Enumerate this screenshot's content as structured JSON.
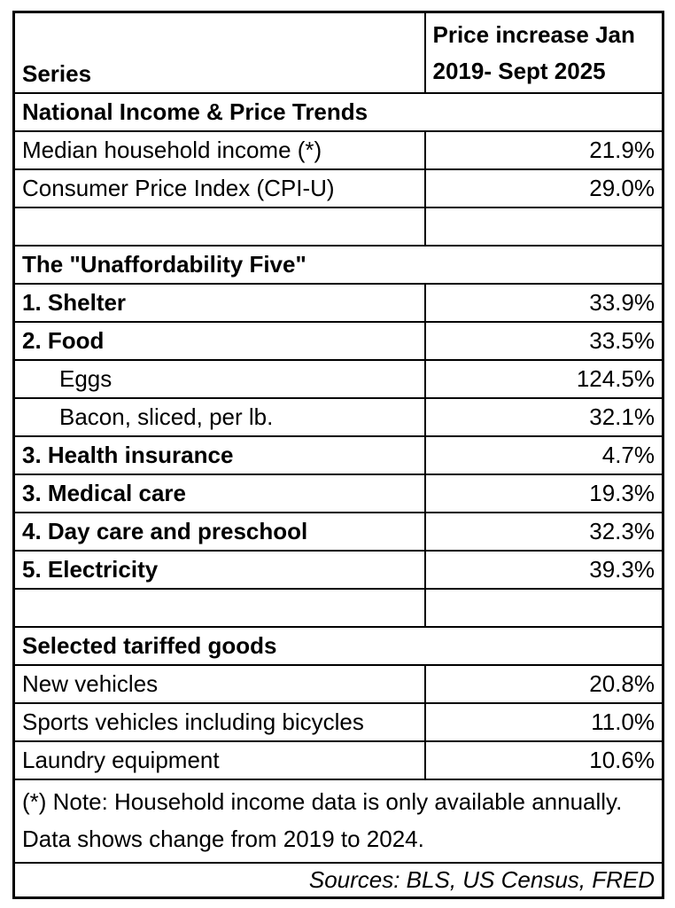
{
  "header": {
    "series_label": "Series",
    "value_label": "Price increase Jan 2019- Sept 2025"
  },
  "rows": [
    {
      "type": "section",
      "label": "National Income & Price Trends"
    },
    {
      "type": "data",
      "label": "Median household income (*)",
      "value": "21.9%"
    },
    {
      "type": "data",
      "label": "Consumer Price Index (CPI-U)",
      "value": "29.0%"
    },
    {
      "type": "spacer",
      "label": "",
      "value": ""
    },
    {
      "type": "section",
      "label": "The \"Unaffordability Five\""
    },
    {
      "type": "data",
      "label": "1. Shelter",
      "value": "33.9%"
    },
    {
      "type": "data",
      "label": "2. Food",
      "value": "33.5%"
    },
    {
      "type": "data",
      "label": "Eggs",
      "value": "124.5%"
    },
    {
      "type": "data",
      "label": "Bacon, sliced, per lb.",
      "value": "32.1%"
    },
    {
      "type": "data",
      "label": "3. Health insurance",
      "value": "4.7%"
    },
    {
      "type": "data",
      "label": "3. Medical care",
      "value": "19.3%"
    },
    {
      "type": "data",
      "label": "4. Day care and preschool",
      "value": "32.3%"
    },
    {
      "type": "data",
      "label": "5. Electricity",
      "value": "39.3%"
    },
    {
      "type": "spacer",
      "label": "",
      "value": ""
    },
    {
      "type": "section",
      "label": "Selected tariffed goods"
    },
    {
      "type": "data",
      "label": "New vehicles",
      "value": "20.8%"
    },
    {
      "type": "data",
      "label": "Sports vehicles including bicycles",
      "value": "11.0%"
    },
    {
      "type": "data",
      "label": "Laundry equipment",
      "value": "10.6%"
    }
  ],
  "footnote": "(*) Note: Household income data is only available annually. Data shows change from 2019 to 2024.",
  "sources": "Sources: BLS, US Census, FRED",
  "colors": {
    "border": "#000000",
    "text": "#000000",
    "background": "#ffffff"
  },
  "chart_data": {
    "type": "table",
    "columns": [
      "Series",
      "Price increase Jan 2019- Sept 2025"
    ],
    "unit": "%",
    "sections": [
      {
        "name": "National Income & Price Trends",
        "rows": [
          {
            "series": "Median household income (*)",
            "price_increase_pct": 21.9
          },
          {
            "series": "Consumer Price Index (CPI-U)",
            "price_increase_pct": 29.0
          }
        ]
      },
      {
        "name": "The \"Unaffordability Five\"",
        "rows": [
          {
            "series": "1. Shelter",
            "price_increase_pct": 33.9
          },
          {
            "series": "2. Food",
            "price_increase_pct": 33.5
          },
          {
            "series": "Eggs",
            "price_increase_pct": 124.5,
            "sub_item": true
          },
          {
            "series": "Bacon, sliced, per lb.",
            "price_increase_pct": 32.1,
            "sub_item": true
          },
          {
            "series": "3. Health insurance",
            "price_increase_pct": 4.7
          },
          {
            "series": "3. Medical care",
            "price_increase_pct": 19.3
          },
          {
            "series": "4. Day care and preschool",
            "price_increase_pct": 32.3
          },
          {
            "series": "5. Electricity",
            "price_increase_pct": 39.3
          }
        ]
      },
      {
        "name": "Selected tariffed goods",
        "rows": [
          {
            "series": "New vehicles",
            "price_increase_pct": 20.8
          },
          {
            "series": "Sports vehicles including bicycles",
            "price_increase_pct": 11.0
          },
          {
            "series": "Laundry equipment",
            "price_increase_pct": 10.6
          }
        ]
      }
    ],
    "footnote": "(*) Note: Household income data is only available annually. Data shows change from 2019 to 2024.",
    "sources": "Sources: BLS, US Census, FRED"
  }
}
